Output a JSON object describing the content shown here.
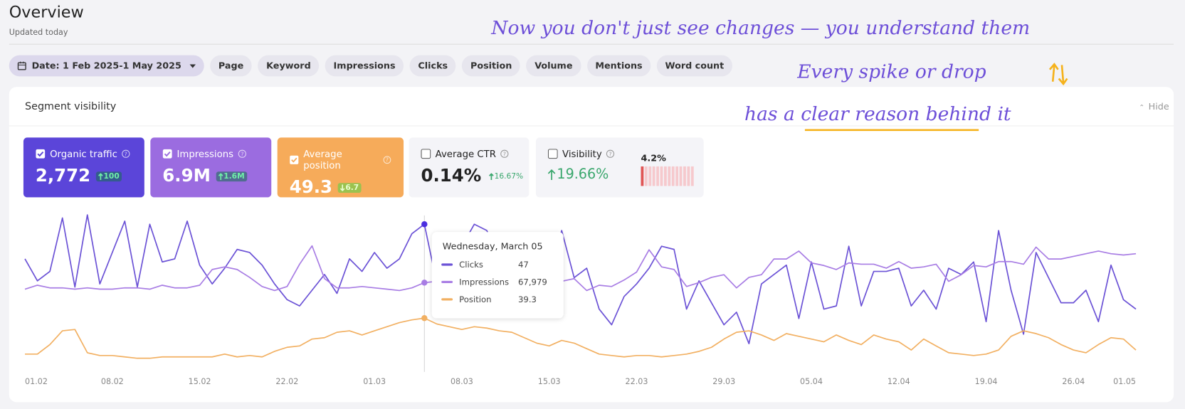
{
  "header": {
    "title": "Overview",
    "subtitle": "Updated today"
  },
  "annotations": [
    "Now you don't just see changes — you understand them",
    "Every spike or drop",
    "has a clear reason behind it"
  ],
  "filters": [
    "Date: 1 Feb 2025-1 May 2025",
    "Page",
    "Keyword",
    "Impressions",
    "Clicks",
    "Position",
    "Volume",
    "Mentions",
    "Word count"
  ],
  "panel": {
    "title": "Segment visibility",
    "hide": "Hide"
  },
  "metrics": [
    {
      "label": "Organic traffic",
      "value": "2,772",
      "change": "100",
      "trend": "up",
      "checked": true,
      "color": "#5b45d9"
    },
    {
      "label": "Impressions",
      "value": "6.9M",
      "change": "1.6M",
      "trend": "up",
      "checked": true,
      "color": "#9b6ce0"
    },
    {
      "label": "Average position",
      "value": "49.3",
      "change": "6.7",
      "trend": "down",
      "checked": true,
      "color": "#f6ab5a"
    },
    {
      "label": "Average CTR",
      "value": "0.14%",
      "change": "16.67%",
      "trend": "up",
      "checked": false,
      "color": "#f4f4f8"
    },
    {
      "label": "Visibility",
      "change": "19.66%",
      "trend": "up",
      "checked": false,
      "color": "#f4f4f8",
      "spark_label": "4.2%"
    }
  ],
  "chart_data": {
    "type": "line",
    "categories": [
      "01.02",
      null,
      null,
      null,
      null,
      null,
      null,
      "08.02",
      null,
      null,
      null,
      null,
      null,
      null,
      "15.02",
      null,
      null,
      null,
      null,
      null,
      null,
      "22.02",
      null,
      null,
      null,
      null,
      null,
      null,
      "01.03",
      null,
      null,
      null,
      null,
      null,
      null,
      "08.03",
      null,
      null,
      null,
      null,
      null,
      null,
      "15.03",
      null,
      null,
      null,
      null,
      null,
      null,
      "22.03",
      null,
      null,
      null,
      null,
      null,
      null,
      "29.03",
      null,
      null,
      null,
      null,
      null,
      null,
      "05.04",
      null,
      null,
      null,
      null,
      null,
      null,
      "12.04",
      null,
      null,
      null,
      null,
      null,
      null,
      "19.04",
      null,
      null,
      null,
      null,
      null,
      null,
      "26.04",
      null,
      null,
      null,
      null,
      "01.05"
    ],
    "series": [
      {
        "name": "Clicks",
        "color": "#6b52d6",
        "ylim": [
          0,
          51
        ],
        "values": [
          36,
          29,
          32,
          49,
          27,
          50,
          28,
          38,
          48,
          27,
          47,
          35,
          36,
          48,
          34,
          28,
          33,
          39,
          38,
          34,
          28,
          23,
          21,
          26,
          31,
          25,
          36,
          32,
          38,
          33,
          36,
          44,
          47,
          28,
          26,
          40,
          47,
          45,
          36,
          30,
          22,
          27,
          31,
          45,
          30,
          33,
          20,
          15,
          24,
          28,
          33,
          40,
          39,
          20,
          29,
          22,
          15,
          19,
          9,
          28,
          31,
          34,
          17,
          35,
          20,
          21,
          40,
          21,
          32,
          32,
          33,
          21,
          26,
          20,
          33,
          31,
          35,
          16,
          45,
          26,
          12,
          38,
          30,
          22,
          22,
          26,
          16,
          34,
          23,
          20
        ]
      },
      {
        "name": "Impressions",
        "color": "#a87de4",
        "ylim": [
          0,
          122000
        ],
        "values": [
          63000,
          66000,
          64000,
          64000,
          63000,
          64000,
          63000,
          63000,
          64000,
          64000,
          63000,
          66000,
          64000,
          64000,
          66000,
          78000,
          80000,
          78000,
          72000,
          65000,
          62000,
          65000,
          82000,
          96000,
          71000,
          64000,
          64000,
          65000,
          64000,
          63000,
          62000,
          64000,
          67979,
          69000,
          68000,
          69000,
          68000,
          70000,
          72000,
          70000,
          68000,
          72000,
          75000,
          69000,
          71000,
          62000,
          66000,
          65000,
          70000,
          76000,
          93000,
          80000,
          78000,
          65000,
          68000,
          72000,
          74000,
          64000,
          72000,
          74000,
          86000,
          86000,
          92000,
          83000,
          81000,
          78000,
          83000,
          82000,
          82000,
          79000,
          84000,
          79000,
          80000,
          82000,
          69000,
          74000,
          81000,
          80000,
          84000,
          84000,
          82000,
          95000,
          86000,
          86000,
          88000,
          90000,
          92000,
          90000,
          89000,
          90000
        ]
      },
      {
        "name": "Position",
        "color": "#f2b062",
        "ylim": [
          0,
          117
        ],
        "values": [
          13,
          13,
          20,
          30,
          31,
          14,
          12,
          12,
          11,
          10,
          10,
          11,
          11,
          11,
          11,
          11,
          13,
          11,
          12,
          11,
          15,
          18,
          19,
          24,
          25,
          29,
          30,
          27,
          30,
          33,
          36,
          38,
          39.3,
          35,
          33,
          31,
          33,
          32,
          30,
          29,
          25,
          21,
          19,
          23,
          21,
          17,
          13,
          12,
          11,
          12,
          12,
          11,
          12,
          13,
          15,
          18,
          24,
          29,
          30,
          27,
          23,
          28,
          26,
          24,
          22,
          27,
          23,
          20,
          27,
          24,
          22,
          16,
          24,
          19,
          14,
          13,
          12,
          13,
          16,
          26,
          30,
          28,
          25,
          20,
          16,
          14,
          20,
          25,
          24,
          16
        ]
      }
    ],
    "tooltip": {
      "title": "Wednesday, March 05",
      "values": [
        47,
        "67,979",
        39.3
      ]
    }
  }
}
